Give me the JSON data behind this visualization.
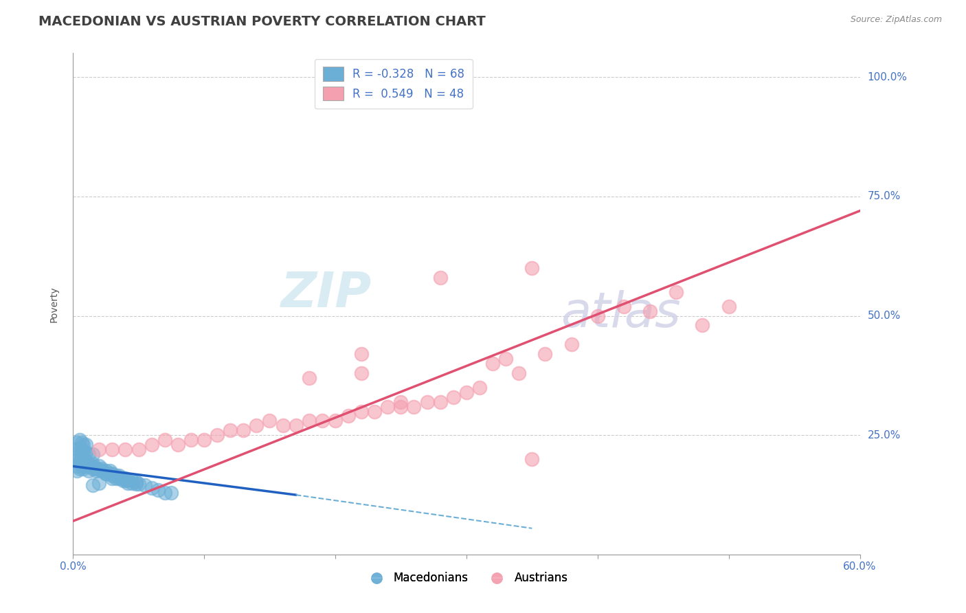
{
  "title": "MACEDONIAN VS AUSTRIAN POVERTY CORRELATION CHART",
  "source": "Source: ZipAtlas.com",
  "ylabel": "Poverty",
  "xlim": [
    0.0,
    0.6
  ],
  "ylim": [
    0.0,
    1.05
  ],
  "ytick_positions": [
    0.0,
    0.25,
    0.5,
    0.75,
    1.0
  ],
  "ytick_labels": [
    "",
    "25.0%",
    "50.0%",
    "75.0%",
    "100.0%"
  ],
  "macedonian_color": "#6baed6",
  "austrian_color": "#f4a0b0",
  "macedonian_R": -0.328,
  "macedonian_N": 68,
  "austrian_R": 0.549,
  "austrian_N": 48,
  "watermark_zip": "ZIP",
  "watermark_atlas": "atlas",
  "background_color": "#ffffff",
  "grid_color": "#cccccc",
  "title_color": "#404040",
  "axis_label_color": "#4472c4",
  "legend_R_color": "#4472c4",
  "title_fontsize": 14,
  "axis_label_fontsize": 10,
  "tick_fontsize": 11,
  "macedonian_points": [
    [
      0.003,
      0.185
    ],
    [
      0.003,
      0.175
    ],
    [
      0.005,
      0.195
    ],
    [
      0.005,
      0.18
    ],
    [
      0.007,
      0.19
    ],
    [
      0.007,
      0.185
    ],
    [
      0.008,
      0.19
    ],
    [
      0.008,
      0.18
    ],
    [
      0.01,
      0.19
    ],
    [
      0.01,
      0.185
    ],
    [
      0.01,
      0.195
    ],
    [
      0.012,
      0.185
    ],
    [
      0.012,
      0.175
    ],
    [
      0.013,
      0.185
    ],
    [
      0.015,
      0.18
    ],
    [
      0.015,
      0.19
    ],
    [
      0.015,
      0.185
    ],
    [
      0.018,
      0.18
    ],
    [
      0.018,
      0.175
    ],
    [
      0.02,
      0.178
    ],
    [
      0.02,
      0.185
    ],
    [
      0.022,
      0.175
    ],
    [
      0.022,
      0.18
    ],
    [
      0.025,
      0.17
    ],
    [
      0.025,
      0.175
    ],
    [
      0.028,
      0.17
    ],
    [
      0.028,
      0.175
    ],
    [
      0.03,
      0.165
    ],
    [
      0.03,
      0.17
    ],
    [
      0.033,
      0.165
    ],
    [
      0.033,
      0.16
    ],
    [
      0.035,
      0.16
    ],
    [
      0.035,
      0.165
    ],
    [
      0.038,
      0.16
    ],
    [
      0.038,
      0.155
    ],
    [
      0.04,
      0.155
    ],
    [
      0.04,
      0.16
    ],
    [
      0.042,
      0.155
    ],
    [
      0.042,
      0.15
    ],
    [
      0.045,
      0.15
    ],
    [
      0.045,
      0.155
    ],
    [
      0.048,
      0.148
    ],
    [
      0.048,
      0.152
    ],
    [
      0.05,
      0.148
    ],
    [
      0.055,
      0.145
    ],
    [
      0.06,
      0.14
    ],
    [
      0.065,
      0.135
    ],
    [
      0.07,
      0.13
    ],
    [
      0.075,
      0.13
    ],
    [
      0.003,
      0.235
    ],
    [
      0.005,
      0.24
    ],
    [
      0.007,
      0.235
    ],
    [
      0.008,
      0.23
    ],
    [
      0.01,
      0.23
    ],
    [
      0.003,
      0.22
    ],
    [
      0.005,
      0.22
    ],
    [
      0.007,
      0.22
    ],
    [
      0.008,
      0.215
    ],
    [
      0.01,
      0.215
    ],
    [
      0.012,
      0.21
    ],
    [
      0.015,
      0.21
    ],
    [
      0.002,
      0.205
    ],
    [
      0.004,
      0.2
    ],
    [
      0.006,
      0.2
    ],
    [
      0.025,
      0.17
    ],
    [
      0.03,
      0.16
    ],
    [
      0.02,
      0.15
    ],
    [
      0.015,
      0.145
    ]
  ],
  "austrian_points": [
    [
      0.02,
      0.22
    ],
    [
      0.03,
      0.22
    ],
    [
      0.04,
      0.22
    ],
    [
      0.05,
      0.22
    ],
    [
      0.06,
      0.23
    ],
    [
      0.07,
      0.24
    ],
    [
      0.08,
      0.23
    ],
    [
      0.09,
      0.24
    ],
    [
      0.1,
      0.24
    ],
    [
      0.11,
      0.25
    ],
    [
      0.12,
      0.26
    ],
    [
      0.13,
      0.26
    ],
    [
      0.14,
      0.27
    ],
    [
      0.15,
      0.28
    ],
    [
      0.16,
      0.27
    ],
    [
      0.17,
      0.27
    ],
    [
      0.18,
      0.28
    ],
    [
      0.19,
      0.28
    ],
    [
      0.2,
      0.28
    ],
    [
      0.21,
      0.29
    ],
    [
      0.22,
      0.3
    ],
    [
      0.23,
      0.3
    ],
    [
      0.24,
      0.31
    ],
    [
      0.25,
      0.32
    ],
    [
      0.25,
      0.31
    ],
    [
      0.26,
      0.31
    ],
    [
      0.27,
      0.32
    ],
    [
      0.28,
      0.32
    ],
    [
      0.29,
      0.33
    ],
    [
      0.3,
      0.34
    ],
    [
      0.31,
      0.35
    ],
    [
      0.32,
      0.4
    ],
    [
      0.33,
      0.41
    ],
    [
      0.34,
      0.38
    ],
    [
      0.36,
      0.42
    ],
    [
      0.38,
      0.44
    ],
    [
      0.4,
      0.5
    ],
    [
      0.42,
      0.52
    ],
    [
      0.44,
      0.51
    ],
    [
      0.46,
      0.55
    ],
    [
      0.48,
      0.48
    ],
    [
      0.5,
      0.52
    ],
    [
      0.18,
      0.37
    ],
    [
      0.22,
      0.38
    ],
    [
      0.28,
      0.58
    ],
    [
      0.35,
      0.6
    ],
    [
      0.22,
      0.42
    ],
    [
      0.35,
      0.2
    ]
  ]
}
